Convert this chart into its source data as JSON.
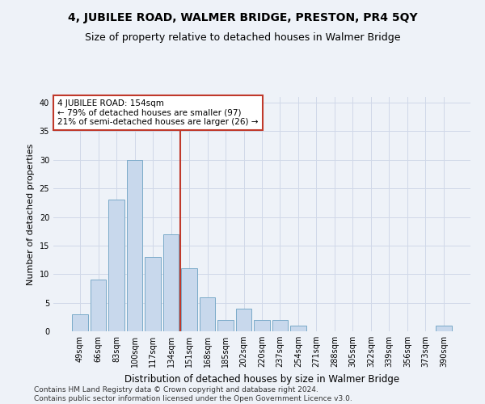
{
  "title": "4, JUBILEE ROAD, WALMER BRIDGE, PRESTON, PR4 5QY",
  "subtitle": "Size of property relative to detached houses in Walmer Bridge",
  "xlabel": "Distribution of detached houses by size in Walmer Bridge",
  "ylabel": "Number of detached properties",
  "categories": [
    "49sqm",
    "66sqm",
    "83sqm",
    "100sqm",
    "117sqm",
    "134sqm",
    "151sqm",
    "168sqm",
    "185sqm",
    "202sqm",
    "220sqm",
    "237sqm",
    "254sqm",
    "271sqm",
    "288sqm",
    "305sqm",
    "322sqm",
    "339sqm",
    "356sqm",
    "373sqm",
    "390sqm"
  ],
  "values": [
    3,
    9,
    23,
    30,
    13,
    17,
    11,
    6,
    2,
    4,
    2,
    2,
    1,
    0,
    0,
    0,
    0,
    0,
    0,
    0,
    1
  ],
  "bar_color": "#c8d8ec",
  "bar_edge_color": "#7aaac8",
  "vline_x_index": 5.5,
  "vline_color": "#c0392b",
  "annotation_line1": "4 JUBILEE ROAD: 154sqm",
  "annotation_line2": "← 79% of detached houses are smaller (97)",
  "annotation_line3": "21% of semi-detached houses are larger (26) →",
  "annotation_box_color": "white",
  "annotation_box_edge_color": "#c0392b",
  "ylim": [
    0,
    41
  ],
  "yticks": [
    0,
    5,
    10,
    15,
    20,
    25,
    30,
    35,
    40
  ],
  "grid_color": "#d0d8e8",
  "background_color": "#eef2f8",
  "footer": "Contains HM Land Registry data © Crown copyright and database right 2024.\nContains public sector information licensed under the Open Government Licence v3.0.",
  "title_fontsize": 10,
  "subtitle_fontsize": 9,
  "xlabel_fontsize": 8.5,
  "ylabel_fontsize": 8,
  "tick_fontsize": 7,
  "footer_fontsize": 6.5,
  "annotation_fontsize": 7.5
}
